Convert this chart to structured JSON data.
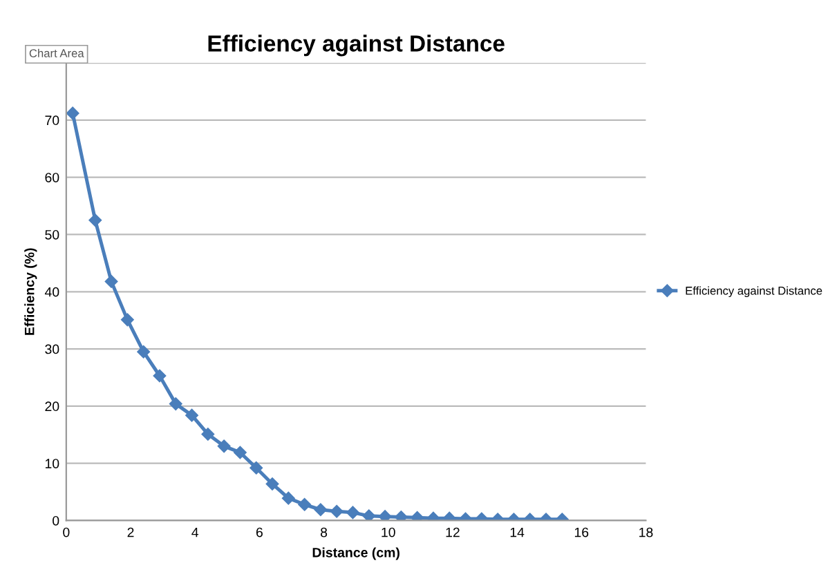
{
  "chart_data": {
    "type": "line",
    "title": "Efficiency against Distance",
    "xlabel": "Distance (cm)",
    "ylabel": "Efficiency (%)",
    "annotations": [
      "Chart Area"
    ],
    "x": [
      0.2,
      0.9,
      1.4,
      1.9,
      2.4,
      2.9,
      3.4,
      3.9,
      4.4,
      4.9,
      5.4,
      5.9,
      6.4,
      6.9,
      7.4,
      7.9,
      8.4,
      8.9,
      9.4,
      9.9,
      10.4,
      10.9,
      11.4,
      11.9,
      12.4,
      12.9,
      13.4,
      13.9,
      14.4,
      14.9,
      15.4
    ],
    "series": [
      {
        "name": "Efficiency against Distance",
        "color": "#4a7ebb",
        "values": [
          71.2,
          52.5,
          41.8,
          35.1,
          29.5,
          25.3,
          20.4,
          18.4,
          15.1,
          13.0,
          11.9,
          9.2,
          6.4,
          3.9,
          2.8,
          1.9,
          1.6,
          1.4,
          0.8,
          0.7,
          0.6,
          0.5,
          0.4,
          0.4,
          0.3,
          0.3,
          0.2,
          0.2,
          0.2,
          0.2,
          0.2
        ]
      }
    ],
    "xlim": [
      0,
      18
    ],
    "xticks": [
      0,
      2,
      4,
      6,
      8,
      10,
      12,
      14,
      16,
      18
    ],
    "ylim": [
      0,
      80
    ],
    "yticks": [
      0,
      10,
      20,
      30,
      40,
      50,
      60,
      70,
      {
        "value": 80,
        "label": null
      }
    ],
    "grid": "y",
    "legend": "right",
    "marker": "diamond",
    "line_style": "solid"
  }
}
